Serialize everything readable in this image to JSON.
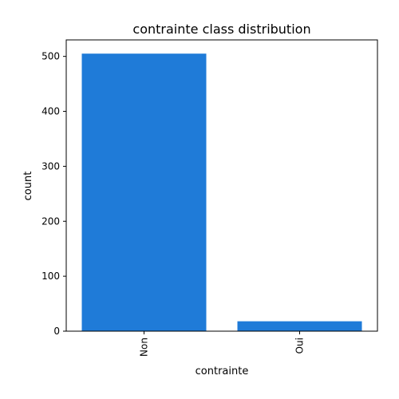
{
  "chart_data": {
    "type": "bar",
    "title": "contrainte class distribution",
    "xlabel": "contrainte",
    "ylabel": "count",
    "categories": [
      "Non",
      "Oui"
    ],
    "values": [
      505,
      18
    ],
    "ylim": [
      0,
      530
    ],
    "yticks": [
      0,
      100,
      200,
      300,
      400,
      500
    ],
    "grid": false,
    "legend": "none",
    "bar_color": "#1f7bd8"
  }
}
